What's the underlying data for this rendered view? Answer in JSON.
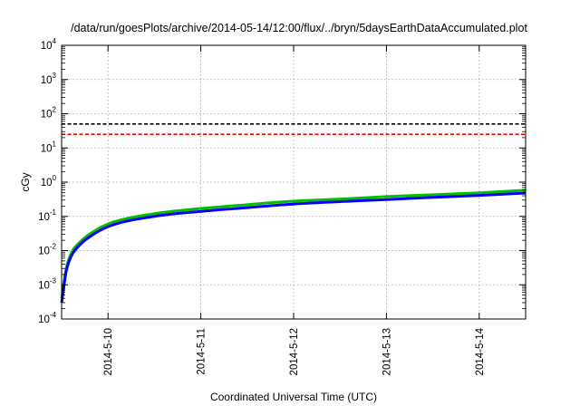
{
  "chart_data": {
    "type": "line",
    "title": "/data/run/goesPlots/archive/2014-05-14/12:00/flux/../bryn/5daysEarthDataAccumulated.plot",
    "xlabel": "Coordinated Universal Time (UTC)",
    "ylabel": "cGy",
    "yscale": "log",
    "ylim": [
      0.0001,
      10000
    ],
    "xlim": [
      "2014-05-09 12:00",
      "2014-05-14 12:00"
    ],
    "x_ticks": [
      "2014-5-10",
      "2014-5-11",
      "2014-5-12",
      "2014-5-13",
      "2014-5-14"
    ],
    "y_ticks": [
      {
        "value": 0.0001,
        "base": "10",
        "exp": "-4"
      },
      {
        "value": 0.001,
        "base": "10",
        "exp": "-3"
      },
      {
        "value": 0.01,
        "base": "10",
        "exp": "-2"
      },
      {
        "value": 0.1,
        "base": "10",
        "exp": "-1"
      },
      {
        "value": 1,
        "base": "10",
        "exp": "0"
      },
      {
        "value": 10,
        "base": "10",
        "exp": "1"
      },
      {
        "value": 100,
        "base": "10",
        "exp": "2"
      },
      {
        "value": 1000,
        "base": "10",
        "exp": "3"
      },
      {
        "value": 10000,
        "base": "10",
        "exp": "4"
      }
    ],
    "grid": true,
    "series": [
      {
        "color": "#00c000",
        "style": "solid",
        "points": [
          [
            "2014-05-09 12:00",
            0.0004
          ],
          [
            "2014-05-09 13:12",
            0.003
          ],
          [
            "2014-05-09 14:24",
            0.008
          ],
          [
            "2014-05-09 16:48",
            0.018
          ],
          [
            "2014-05-09 19:12",
            0.03
          ],
          [
            "2014-05-10 00:00",
            0.06
          ],
          [
            "2014-05-10 12:00",
            0.12
          ],
          [
            "2014-05-11 00:00",
            0.17
          ],
          [
            "2014-05-11 12:00",
            0.22
          ],
          [
            "2014-05-12 00:00",
            0.28
          ],
          [
            "2014-05-12 12:00",
            0.32
          ],
          [
            "2014-05-13 00:00",
            0.38
          ],
          [
            "2014-05-13 12:00",
            0.43
          ],
          [
            "2014-05-14 00:00",
            0.49
          ],
          [
            "2014-05-14 12:00",
            0.58
          ]
        ]
      },
      {
        "color": "#0000ff",
        "style": "solid",
        "points": [
          [
            "2014-05-09 12:00",
            0.0003
          ],
          [
            "2014-05-09 13:12",
            0.0025
          ],
          [
            "2014-05-09 14:24",
            0.0065
          ],
          [
            "2014-05-09 16:48",
            0.015
          ],
          [
            "2014-05-09 19:12",
            0.025
          ],
          [
            "2014-05-10 00:00",
            0.05
          ],
          [
            "2014-05-10 12:00",
            0.1
          ],
          [
            "2014-05-11 00:00",
            0.14
          ],
          [
            "2014-05-11 12:00",
            0.18
          ],
          [
            "2014-05-12 00:00",
            0.23
          ],
          [
            "2014-05-12 12:00",
            0.27
          ],
          [
            "2014-05-13 00:00",
            0.31
          ],
          [
            "2014-05-13 12:00",
            0.36
          ],
          [
            "2014-05-14 00:00",
            0.41
          ],
          [
            "2014-05-14 12:00",
            0.48
          ]
        ]
      },
      {
        "color": "#000000",
        "style": "dashed",
        "points": [
          [
            "2014-05-09 12:00",
            50
          ],
          [
            "2014-05-14 12:00",
            50
          ]
        ]
      },
      {
        "color": "#ff0000",
        "style": "dashed",
        "points": [
          [
            "2014-05-09 12:00",
            25
          ],
          [
            "2014-05-14 12:00",
            25
          ]
        ]
      }
    ]
  }
}
